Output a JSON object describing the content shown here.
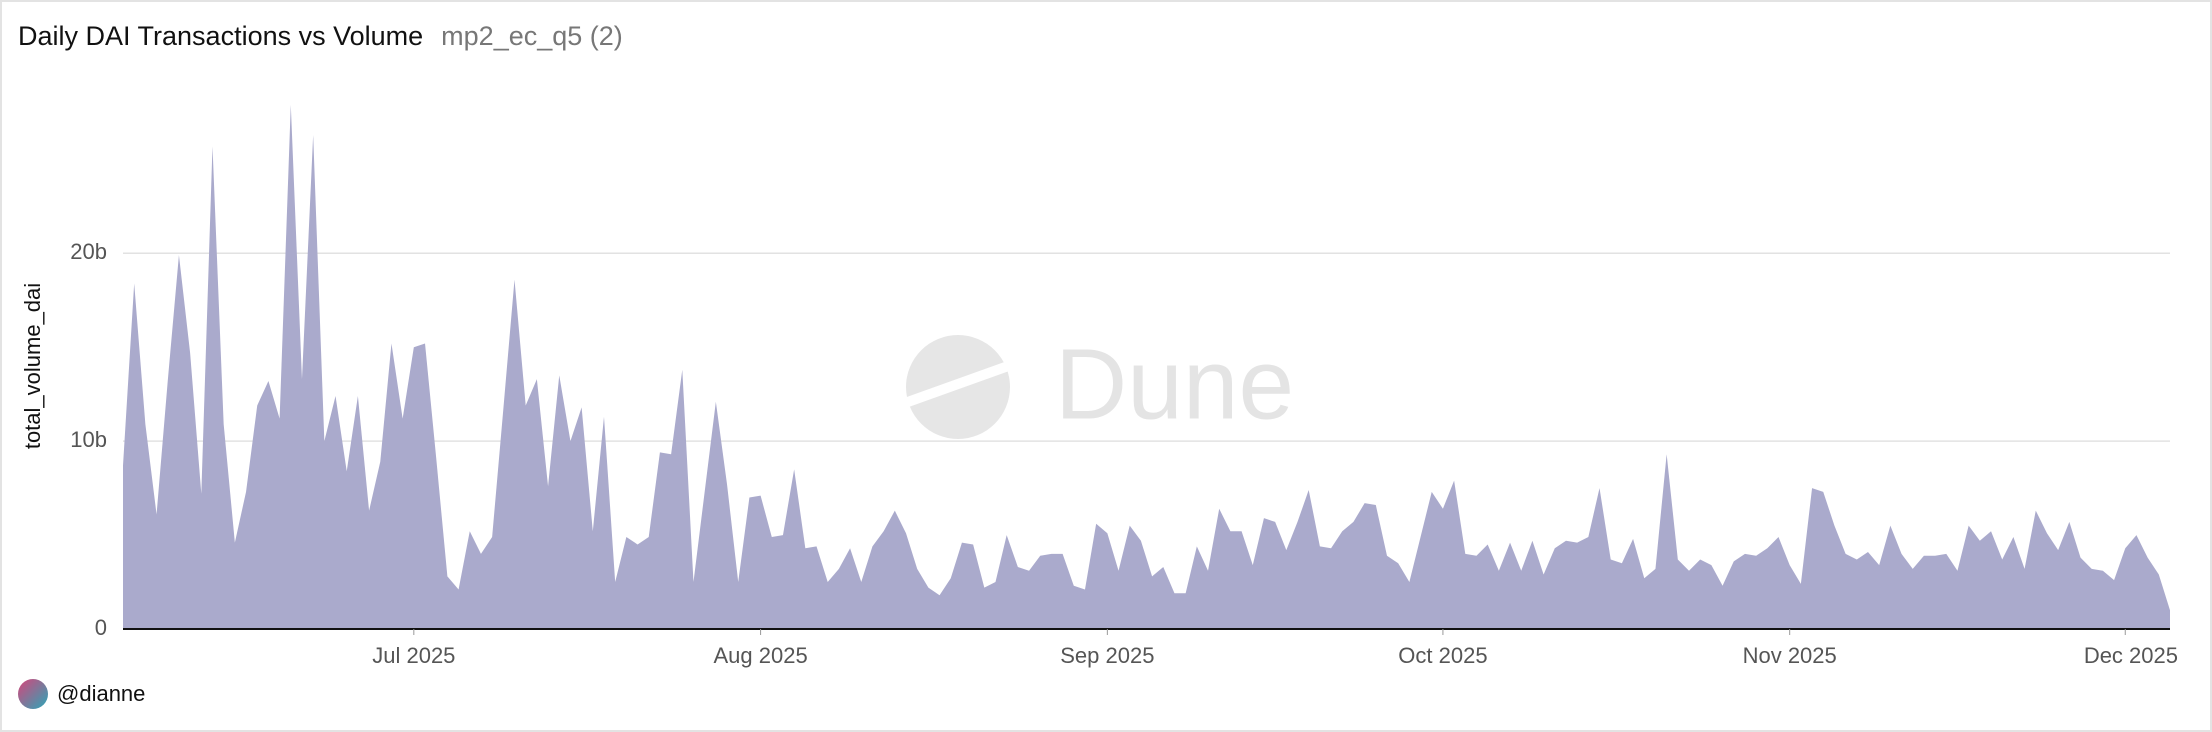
{
  "chart_data": {
    "type": "area",
    "title": "Daily DAI Transactions vs Volume",
    "subtitle": "mp2_ec_q5 (2)",
    "y_label": "total_volume_dai",
    "color": "#aaaacc",
    "grid": true,
    "ylim": [
      0,
      28
    ],
    "yticks": [
      0,
      {
        "value": 10,
        "label": "10b"
      },
      {
        "value": 20,
        "label": "20b"
      }
    ],
    "xlim": [
      0,
      183
    ],
    "xticks": [
      {
        "value": 26,
        "label": "Jul 2025"
      },
      {
        "value": 57,
        "label": "Aug 2025"
      },
      {
        "value": 88,
        "label": "Sep 2025"
      },
      {
        "value": 118,
        "label": "Oct 2025"
      },
      {
        "value": 149,
        "label": "Nov 2025"
      },
      {
        "value": 179,
        "label": "Dec 2025"
      }
    ],
    "values": [
      8.7,
      18.4,
      10.9,
      6.1,
      13.2,
      19.9,
      14.7,
      7.2,
      25.7,
      10.9,
      4.6,
      7.3,
      11.9,
      13.2,
      11.2,
      27.9,
      13.3,
      26.3,
      10.0,
      12.4,
      8.4,
      12.4,
      6.3,
      8.9,
      15.2,
      11.2,
      15.0,
      15.2,
      9.1,
      2.8,
      2.1,
      5.2,
      4.0,
      4.9,
      11.7,
      18.6,
      11.9,
      13.3,
      7.6,
      13.5,
      10.0,
      11.8,
      5.2,
      11.3,
      2.5,
      4.9,
      4.5,
      4.9,
      9.4,
      9.3,
      13.8,
      2.5,
      7.3,
      12.1,
      7.7,
      2.5,
      7.0,
      7.1,
      4.9,
      5.0,
      8.5,
      4.3,
      4.4,
      2.5,
      3.2,
      4.3,
      2.5,
      4.4,
      5.2,
      6.3,
      5.1,
      3.2,
      2.2,
      1.8,
      2.7,
      4.6,
      4.5,
      2.2,
      2.5,
      5.0,
      3.3,
      3.1,
      3.9,
      4.0,
      4.0,
      2.3,
      2.1,
      5.6,
      5.1,
      3.1,
      5.5,
      4.7,
      2.8,
      3.3,
      1.9,
      1.9,
      4.4,
      3.1,
      6.4,
      5.2,
      5.2,
      3.4,
      5.9,
      5.7,
      4.2,
      5.7,
      7.4,
      4.4,
      4.3,
      5.2,
      5.7,
      6.7,
      6.6,
      3.9,
      3.5,
      2.5,
      4.9,
      7.3,
      6.4,
      7.9,
      4.0,
      3.9,
      4.5,
      3.1,
      4.6,
      3.1,
      4.7,
      2.9,
      4.3,
      4.7,
      4.6,
      4.9,
      7.5,
      3.7,
      3.5,
      4.8,
      2.7,
      3.2,
      9.3,
      3.7,
      3.1,
      3.7,
      3.4,
      2.3,
      3.6,
      4.0,
      3.9,
      4.3,
      4.9,
      3.4,
      2.4,
      7.5,
      7.3,
      5.5,
      4.0,
      3.7,
      4.1,
      3.4,
      5.5,
      4.0,
      3.2,
      3.9,
      3.9,
      4.0,
      3.1,
      5.5,
      4.7,
      5.2,
      3.7,
      4.9,
      3.2,
      6.3,
      5.1,
      4.2,
      5.7,
      3.8,
      3.2,
      3.1,
      2.6,
      4.3,
      5.0,
      3.8,
      2.9,
      1.0
    ]
  },
  "watermark": "Dune",
  "footer": {
    "author": "@dianne"
  }
}
